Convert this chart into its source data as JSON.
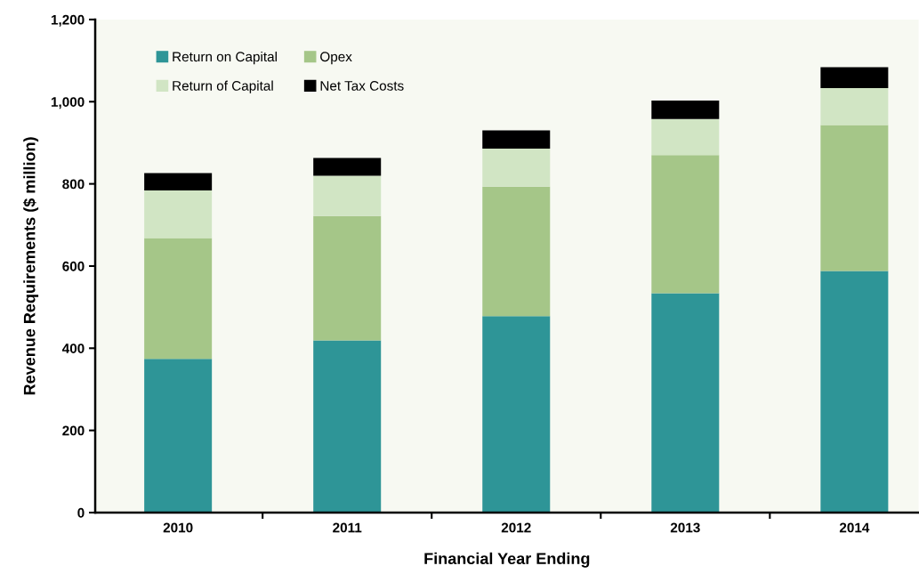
{
  "chart_data": {
    "type": "bar",
    "stacked": true,
    "xlabel": "Financial Year Ending",
    "ylabel": "Revenue Requirements ($ million)",
    "categories": [
      "2010",
      "2011",
      "2012",
      "2013",
      "2014"
    ],
    "series": [
      {
        "name": "Return on Capital",
        "color": "#2e9597",
        "values": [
          374,
          419,
          478,
          534,
          588
        ]
      },
      {
        "name": "Opex",
        "color": "#a5c688",
        "values": [
          294,
          303,
          315,
          336,
          355
        ]
      },
      {
        "name": "Return of Capital",
        "color": "#d1e5c4",
        "values": [
          116,
          98,
          93,
          88,
          90
        ]
      },
      {
        "name": "Net Tax Costs",
        "color": "#000000",
        "values": [
          42,
          43,
          44,
          45,
          51
        ]
      }
    ],
    "ylim": [
      0,
      1200
    ],
    "yticks": [
      0,
      200,
      400,
      600,
      {
        "value": 800,
        "label": "800"
      },
      {
        "value": 1000,
        "label": "1,000"
      },
      {
        "value": 1200,
        "label": "1,200"
      }
    ],
    "grid": false,
    "legend": "top left"
  }
}
